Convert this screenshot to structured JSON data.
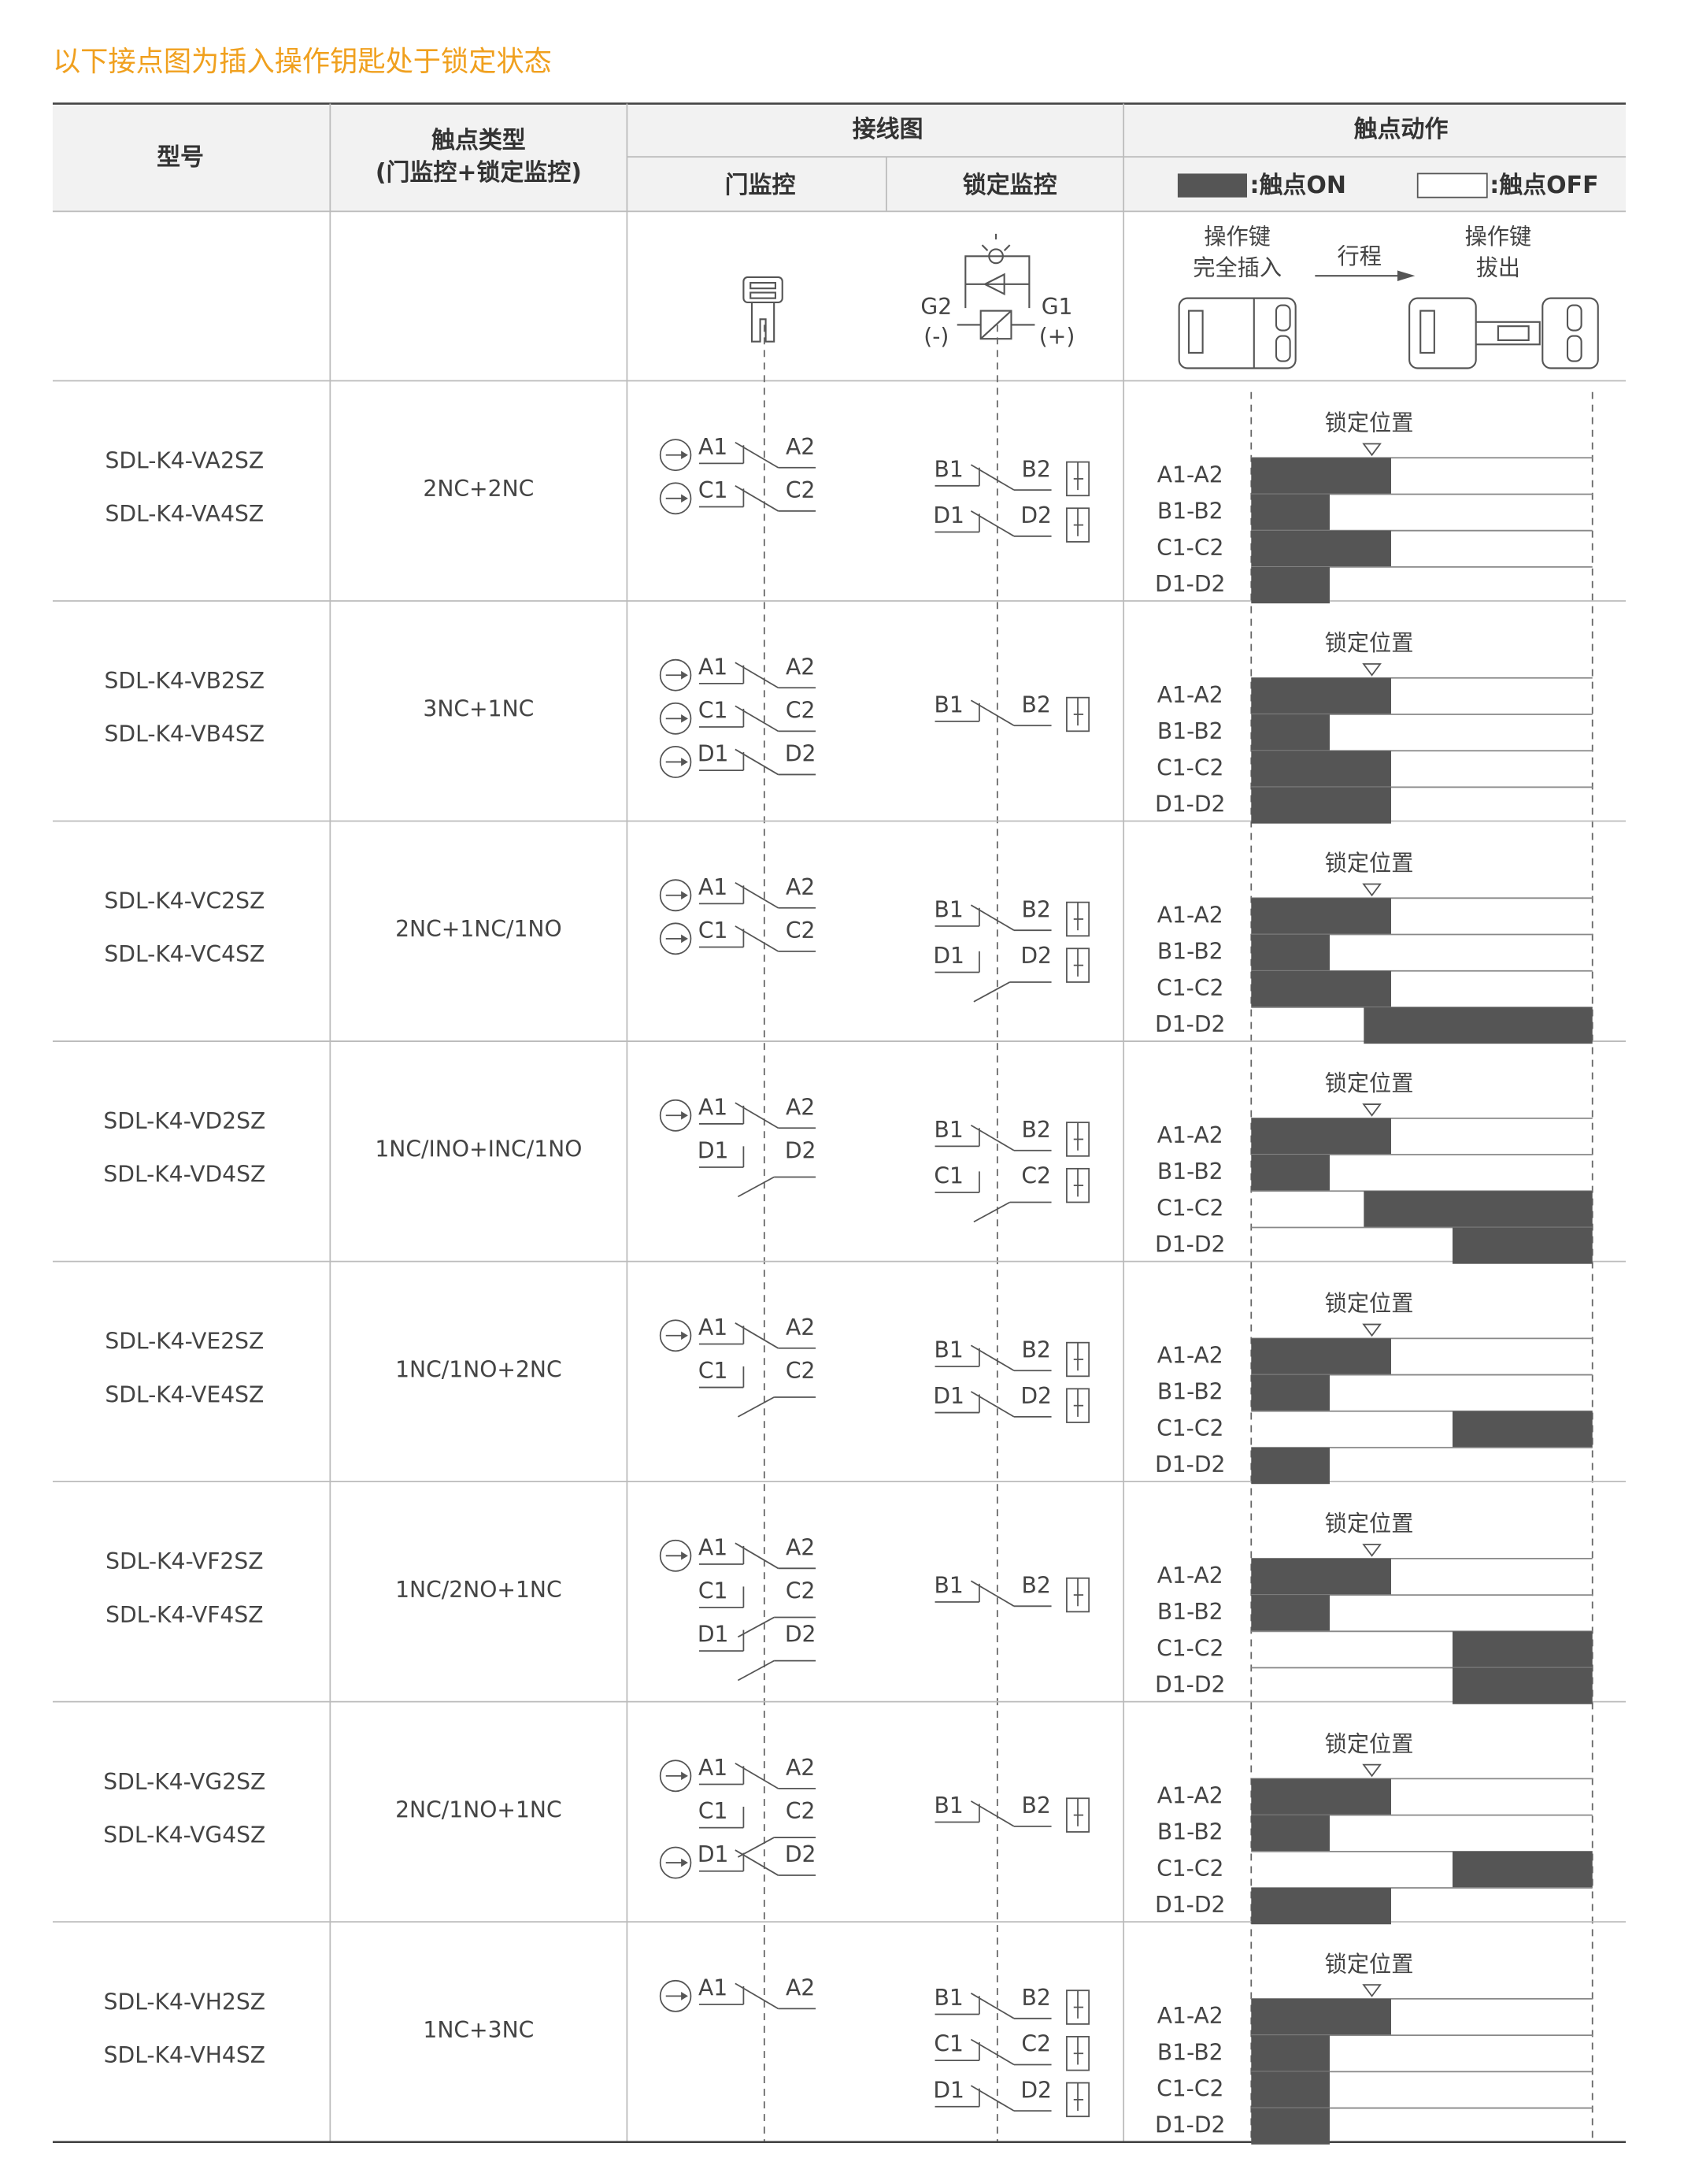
{
  "title": "以下接点图为插入操作钥匙处于锁定状态",
  "header": {
    "model": "型号",
    "contact_type": [
      "触点类型",
      "(门监控+锁定监控)"
    ],
    "wiring": "接线图",
    "door": "门监控",
    "lock": "锁定监控",
    "action": "触点动作",
    "on": ":触点ON",
    "off": ":触点OFF"
  },
  "diagram": {
    "key_in": [
      "操作键",
      "完全插入"
    ],
    "stroke": "行程",
    "key_out": [
      "操作键",
      "拔出"
    ],
    "g2": "G2",
    "g2_sign": "(-)",
    "g1": "G1",
    "g1_sign": "(+)"
  },
  "lock_position": "锁定位置",
  "action_labels": [
    "A1-A2",
    "B1-B2",
    "C1-C2",
    "D1-D2"
  ],
  "rows": [
    {
      "models": [
        "SDL-K4-VA2SZ",
        "SDL-K4-VA4SZ"
      ],
      "type": "2NC+2NC",
      "door": [
        {
          "from": "A1",
          "to": "A2",
          "kind": "NC",
          "forced": true
        },
        {
          "from": "C1",
          "to": "C2",
          "kind": "NC",
          "forced": true
        }
      ],
      "lock": [
        {
          "from": "B1",
          "to": "B2",
          "kind": "NC"
        },
        {
          "from": "D1",
          "to": "D2",
          "kind": "NC"
        }
      ],
      "action": [
        [
          0,
          41
        ],
        [
          0,
          23
        ],
        [
          0,
          41
        ],
        [
          0,
          23
        ]
      ]
    },
    {
      "models": [
        "SDL-K4-VB2SZ",
        "SDL-K4-VB4SZ"
      ],
      "type": "3NC+1NC",
      "door": [
        {
          "from": "A1",
          "to": "A2",
          "kind": "NC",
          "forced": true
        },
        {
          "from": "C1",
          "to": "C2",
          "kind": "NC",
          "forced": true
        },
        {
          "from": "D1",
          "to": "D2",
          "kind": "NC",
          "forced": true
        }
      ],
      "lock": [
        {
          "from": "B1",
          "to": "B2",
          "kind": "NC"
        }
      ],
      "action": [
        [
          0,
          41
        ],
        [
          0,
          23
        ],
        [
          0,
          41
        ],
        [
          0,
          41
        ]
      ]
    },
    {
      "models": [
        "SDL-K4-VC2SZ",
        "SDL-K4-VC4SZ"
      ],
      "type": "2NC+1NC/1NO",
      "door": [
        {
          "from": "A1",
          "to": "A2",
          "kind": "NC",
          "forced": true
        },
        {
          "from": "C1",
          "to": "C2",
          "kind": "NC",
          "forced": true
        }
      ],
      "lock": [
        {
          "from": "B1",
          "to": "B2",
          "kind": "NC"
        },
        {
          "from": "D1",
          "to": "D2",
          "kind": "NO"
        }
      ],
      "action": [
        [
          0,
          41
        ],
        [
          0,
          23
        ],
        [
          0,
          41
        ],
        [
          33,
          100
        ]
      ]
    },
    {
      "models": [
        "SDL-K4-VD2SZ",
        "SDL-K4-VD4SZ"
      ],
      "type": "1NC/INO+INC/1NO",
      "door": [
        {
          "from": "A1",
          "to": "A2",
          "kind": "NC",
          "forced": true
        },
        {
          "from": "D1",
          "to": "D2",
          "kind": "NO",
          "forced": false
        }
      ],
      "lock": [
        {
          "from": "B1",
          "to": "B2",
          "kind": "NC"
        },
        {
          "from": "C1",
          "to": "C2",
          "kind": "NO"
        }
      ],
      "action": [
        [
          0,
          41
        ],
        [
          0,
          23
        ],
        [
          33,
          100
        ],
        [
          59,
          100
        ]
      ]
    },
    {
      "models": [
        "SDL-K4-VE2SZ",
        "SDL-K4-VE4SZ"
      ],
      "type": "1NC/1NO+2NC",
      "door": [
        {
          "from": "A1",
          "to": "A2",
          "kind": "NC",
          "forced": true
        },
        {
          "from": "C1",
          "to": "C2",
          "kind": "NO",
          "forced": false
        }
      ],
      "lock": [
        {
          "from": "B1",
          "to": "B2",
          "kind": "NC"
        },
        {
          "from": "D1",
          "to": "D2",
          "kind": "NC"
        }
      ],
      "action": [
        [
          0,
          41
        ],
        [
          0,
          23
        ],
        [
          59,
          100
        ],
        [
          0,
          23
        ]
      ]
    },
    {
      "models": [
        "SDL-K4-VF2SZ",
        "SDL-K4-VF4SZ"
      ],
      "type": "1NC/2NO+1NC",
      "door": [
        {
          "from": "A1",
          "to": "A2",
          "kind": "NC",
          "forced": true
        },
        {
          "from": "C1",
          "to": "C2",
          "kind": "NO",
          "forced": false
        },
        {
          "from": "D1",
          "to": "D2",
          "kind": "NO",
          "forced": false
        }
      ],
      "lock": [
        {
          "from": "B1",
          "to": "B2",
          "kind": "NC"
        }
      ],
      "action": [
        [
          0,
          41
        ],
        [
          0,
          23
        ],
        [
          59,
          100
        ],
        [
          59,
          100
        ]
      ]
    },
    {
      "models": [
        "SDL-K4-VG2SZ",
        "SDL-K4-VG4SZ"
      ],
      "type": "2NC/1NO+1NC",
      "door": [
        {
          "from": "A1",
          "to": "A2",
          "kind": "NC",
          "forced": true
        },
        {
          "from": "C1",
          "to": "C2",
          "kind": "NO",
          "forced": false
        },
        {
          "from": "D1",
          "to": "D2",
          "kind": "NC",
          "forced": true
        }
      ],
      "lock": [
        {
          "from": "B1",
          "to": "B2",
          "kind": "NC"
        }
      ],
      "action": [
        [
          0,
          41
        ],
        [
          0,
          23
        ],
        [
          59,
          100
        ],
        [
          0,
          41
        ]
      ]
    },
    {
      "models": [
        "SDL-K4-VH2SZ",
        "SDL-K4-VH4SZ"
      ],
      "type": "1NC+3NC",
      "door": [
        {
          "from": "A1",
          "to": "A2",
          "kind": "NC",
          "forced": true
        }
      ],
      "lock": [
        {
          "from": "B1",
          "to": "B2",
          "kind": "NC"
        },
        {
          "from": "C1",
          "to": "C2",
          "kind": "NC"
        },
        {
          "from": "D1",
          "to": "D2",
          "kind": "NC"
        }
      ],
      "action": [
        [
          0,
          41
        ],
        [
          0,
          23
        ],
        [
          0,
          23
        ],
        [
          0,
          23
        ]
      ]
    }
  ]
}
